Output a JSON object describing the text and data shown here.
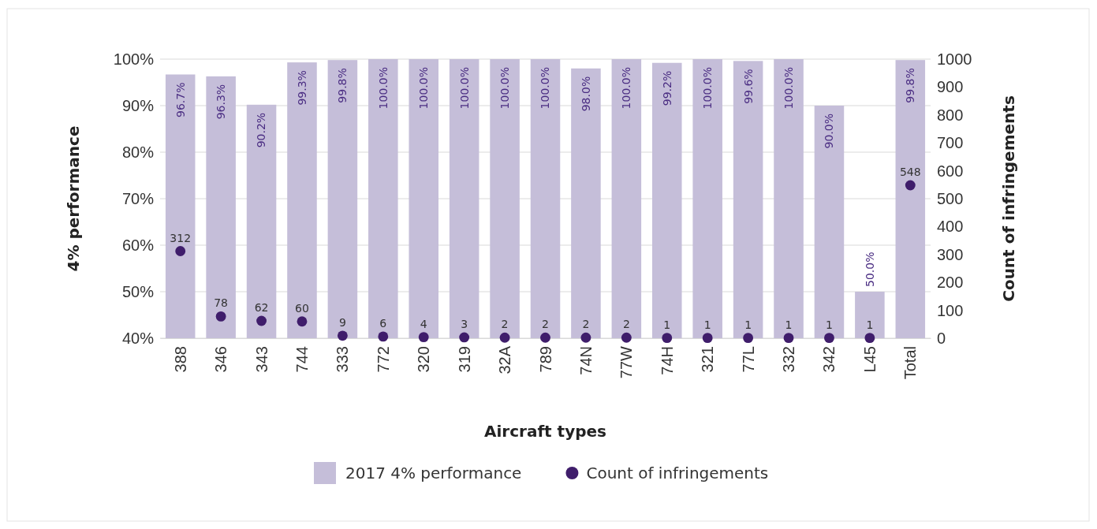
{
  "chart_data": {
    "type": "bar",
    "xlabel": "Aircraft types",
    "ylabel": "4% performance",
    "y2label": "Count of infringements",
    "categories": [
      "388",
      "346",
      "343",
      "744",
      "333",
      "772",
      "320",
      "319",
      "32A",
      "789",
      "74N",
      "77W",
      "74H",
      "321",
      "77L",
      "332",
      "342",
      "L45",
      "Total"
    ],
    "series": [
      {
        "name": "2017 4% performance",
        "color": "#c5bed9",
        "values": [
          96.7,
          96.3,
          90.2,
          99.3,
          99.8,
          100,
          100,
          100,
          100,
          100,
          98.0,
          100,
          99.2,
          100,
          99.6,
          100,
          90.0,
          50.0,
          99.8
        ],
        "value_labels": [
          "96.7%",
          "96.3%",
          "90.2%",
          "99.3%",
          "99.8%",
          "100.0%",
          "100.0%",
          "100.0%",
          "100.0%",
          "100.0%",
          "98.0%",
          "100.0%",
          "99.2%",
          "100.0%",
          "99.6%",
          "100.0%",
          "90.0%",
          "50.0%",
          "99.8%"
        ]
      },
      {
        "name": "Count of infringements",
        "type": "scatter",
        "axis": "y2",
        "color": "#3f1d6b",
        "values": [
          312,
          78,
          62,
          60,
          9,
          6,
          4,
          3,
          2,
          2,
          2,
          2,
          1,
          1,
          1,
          1,
          1,
          1,
          548
        ],
        "value_labels": [
          "312",
          "78",
          "62",
          "60",
          "9",
          "6",
          "4",
          "3",
          "2",
          "2",
          "2",
          "2",
          "1",
          "1",
          "1",
          "1",
          "1",
          "1",
          "548"
        ]
      }
    ],
    "ylim": [
      40,
      100
    ],
    "yticks": [
      {
        "value": 40,
        "label": "40%"
      },
      {
        "value": 50,
        "label": "50%"
      },
      {
        "value": 60,
        "label": "60%"
      },
      {
        "value": 70,
        "label": "70%"
      },
      {
        "value": 80,
        "label": "80%"
      },
      {
        "value": 90,
        "label": "90%"
      },
      {
        "value": 100,
        "label": "100%"
      }
    ],
    "y2lim": [
      0,
      1000
    ],
    "y2ticks": [
      0,
      100,
      200,
      300,
      400,
      500,
      600,
      700,
      800,
      900,
      1000
    ],
    "grid": "y",
    "legend": "bottom",
    "marker": "circle"
  }
}
